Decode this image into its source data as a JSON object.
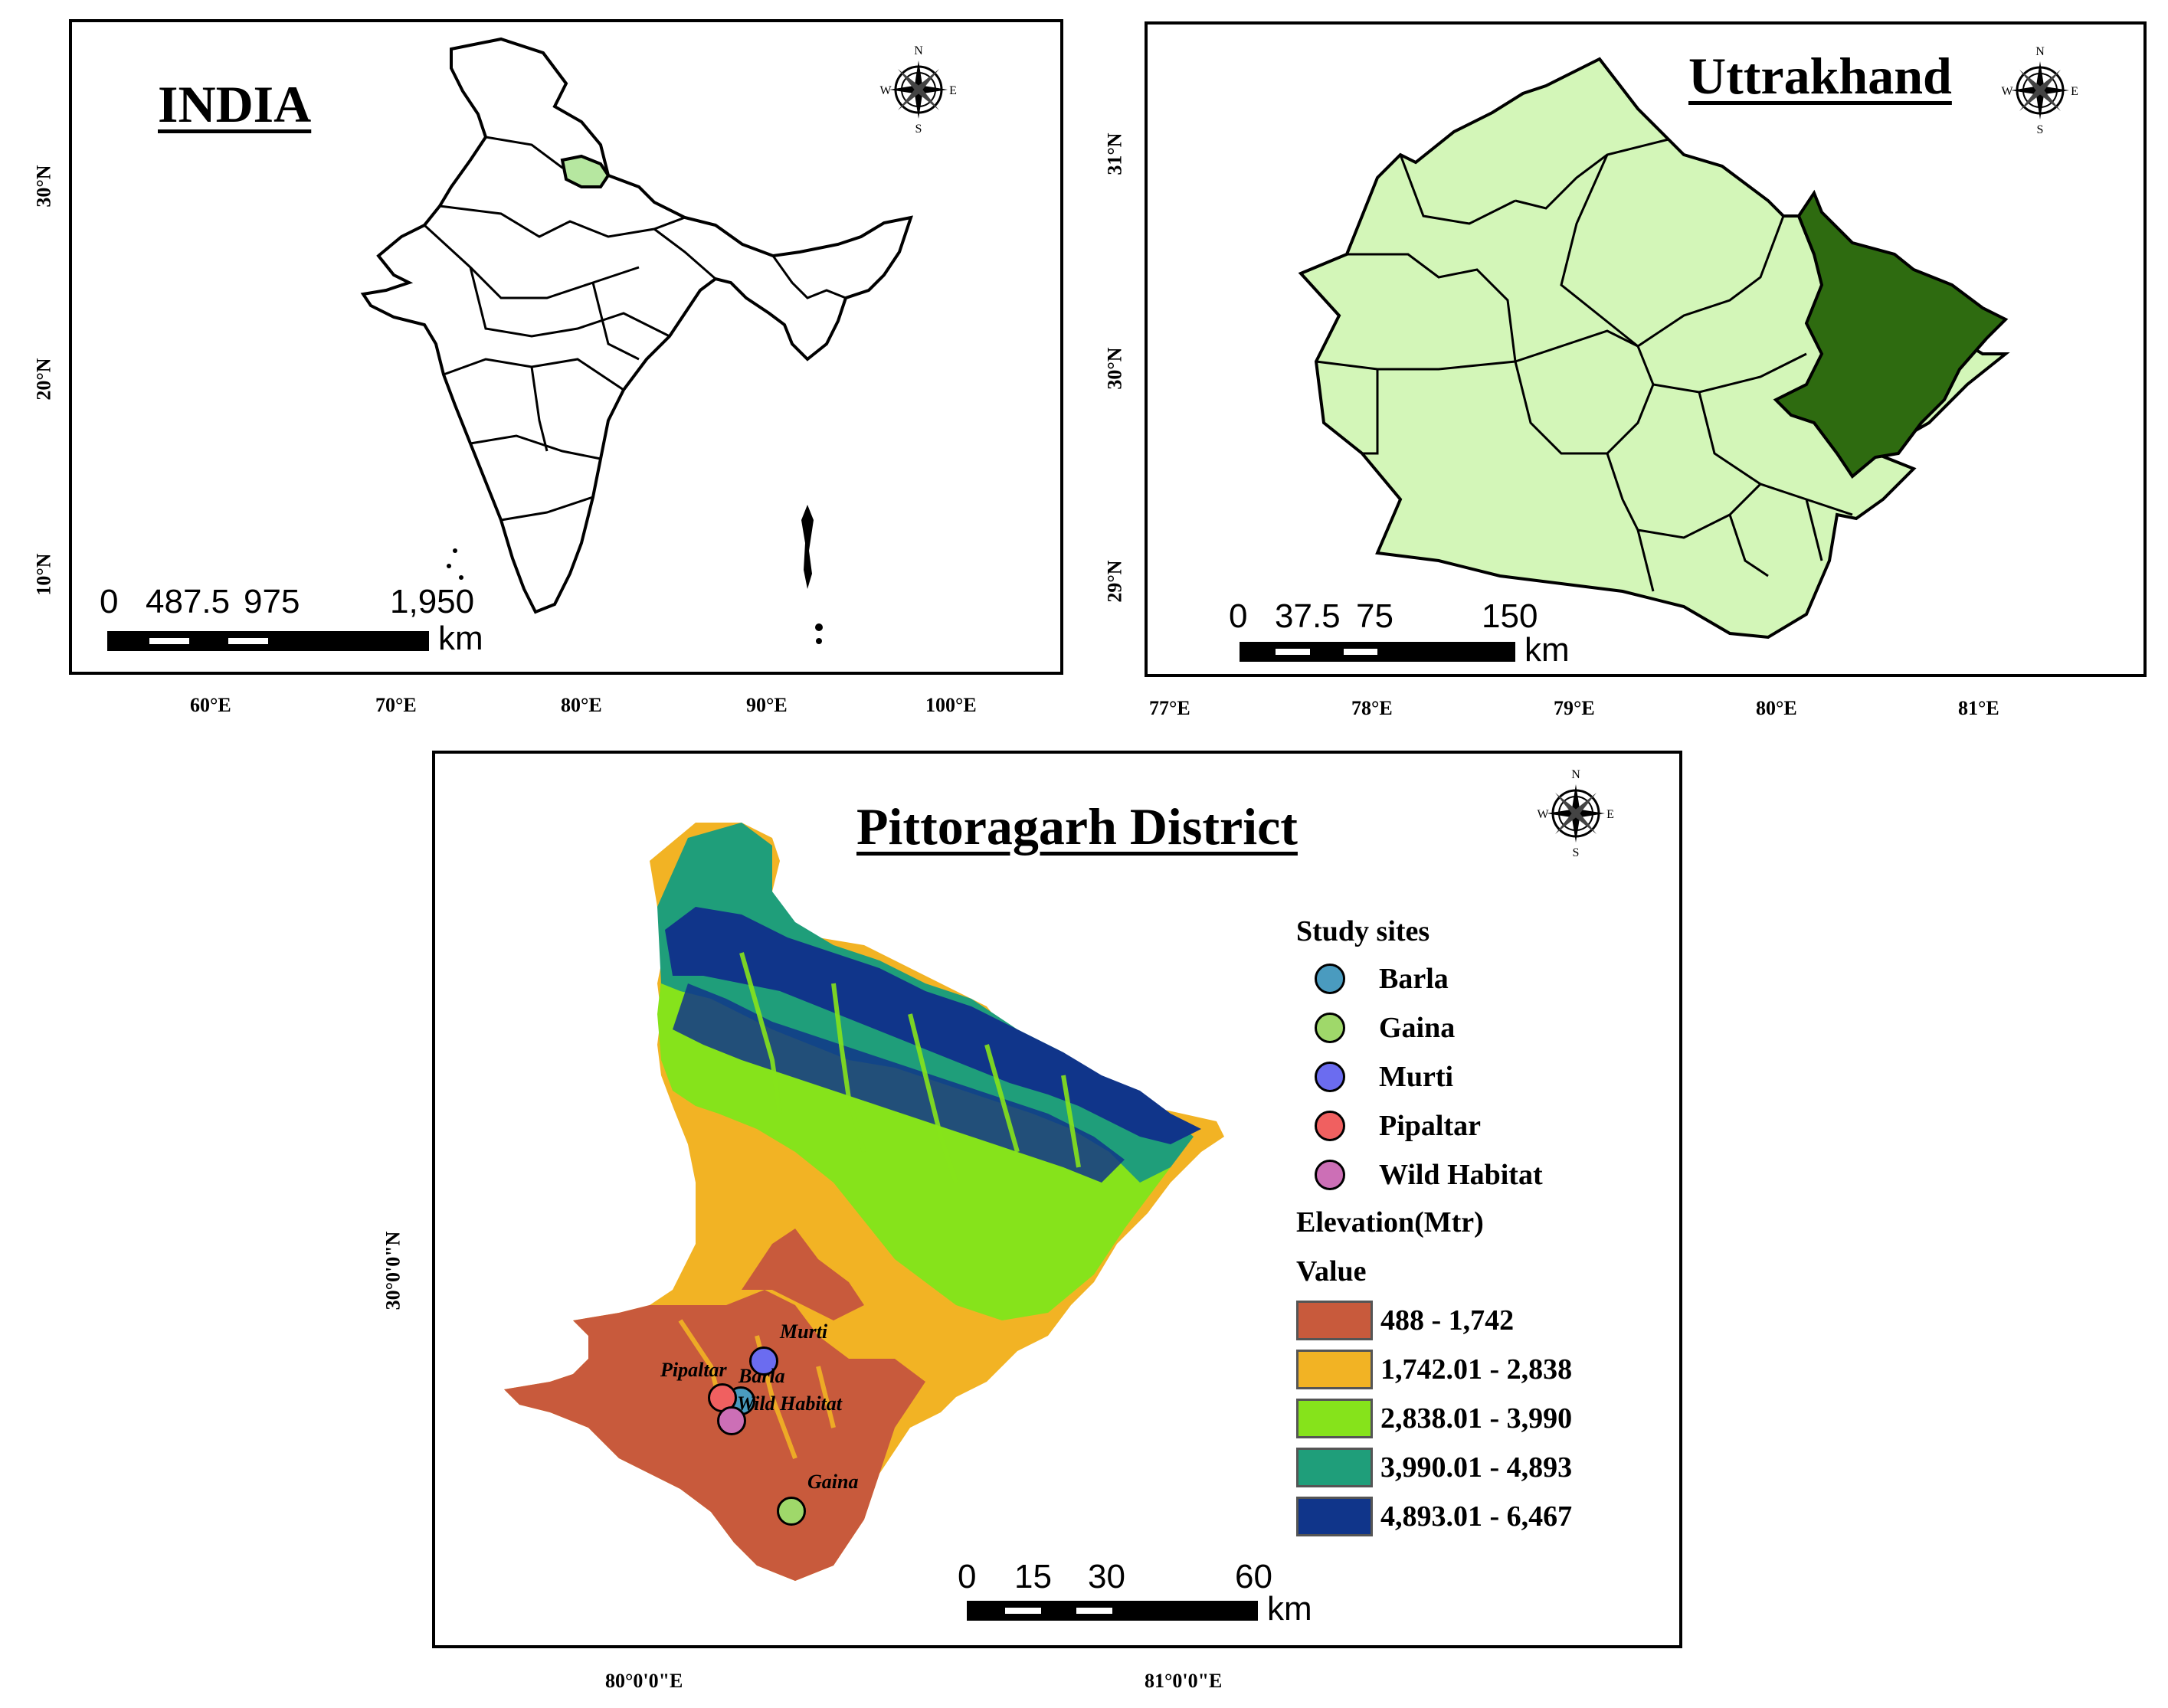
{
  "panels": {
    "india": {
      "title": "INDIA",
      "lat_ticks": [
        "30°N",
        "20°N",
        "10°N"
      ],
      "lon_ticks": [
        "60°E",
        "70°E",
        "80°E",
        "90°E",
        "100°E"
      ],
      "scale_labels": [
        "0",
        "487.5",
        "975",
        "1,950"
      ],
      "scale_unit": "km"
    },
    "uttrakhand": {
      "title": "Uttrakhand",
      "lat_ticks": [
        "31°N",
        "30°N",
        "29°N"
      ],
      "lon_ticks": [
        "77°E",
        "78°E",
        "79°E",
        "80°E",
        "81°E"
      ],
      "scale_labels": [
        "0",
        "37.5",
        "75",
        "150"
      ],
      "scale_unit": "km",
      "highlight_color": "#2e6b10",
      "fill_color": "#d3f6b8"
    },
    "pittoragarh": {
      "title": "Pittoragarh District",
      "lat_ticks": [
        "30°0'0\"N"
      ],
      "lon_ticks": [
        "80°0'0\"E",
        "81°0'0\"E"
      ],
      "scale_labels": [
        "0",
        "15",
        "30",
        "60"
      ],
      "scale_unit": "km"
    }
  },
  "compass": {
    "n": "N",
    "s": "S",
    "e": "E",
    "w": "W"
  },
  "legend": {
    "sites_heading": "Study sites",
    "sites": [
      {
        "name": "Barla",
        "color": "#4a9bbf"
      },
      {
        "name": "Gaina",
        "color": "#9fd86a"
      },
      {
        "name": "Murti",
        "color": "#6b6cf0"
      },
      {
        "name": "Pipaltar",
        "color": "#f06060"
      },
      {
        "name": "Wild Habitat",
        "color": "#cc6fb6"
      }
    ],
    "elevation_heading": "Elevation(Mtr)",
    "value_heading": "Value",
    "classes": [
      {
        "range": "488 - 1,742",
        "color": "#c85a3c"
      },
      {
        "range": "1,742.01 - 2,838",
        "color": "#f2b324"
      },
      {
        "range": "2,838.01 - 3,990",
        "color": "#86e31b"
      },
      {
        "range": "3,990.01 - 4,893",
        "color": "#1f9e7a"
      },
      {
        "range": "4,893.01 - 6,467",
        "color": "#10358a"
      }
    ]
  },
  "site_labels": {
    "murti": "Murti",
    "pipaltar": "Pipaltar",
    "barla": "Barla",
    "wild": "Wild Habitat",
    "gaina": "Gaina"
  }
}
